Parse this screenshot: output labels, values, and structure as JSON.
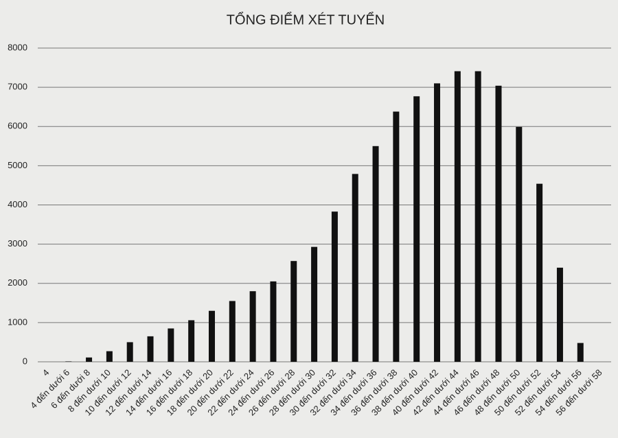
{
  "chart_data": {
    "type": "bar",
    "title": "TỔNG ĐIỂM XÉT TUYỂN",
    "categories": [
      "4",
      "4 đến dưới 6",
      "6 đến dưới 8",
      "8 đến dưới 10",
      "10 đến dưới 12",
      "12 đến dưới 14",
      "14 đến dưới 16",
      "16 đến dưới 18",
      "18 đến dưới 20",
      "20 đến dưới 22",
      "22 đến dưới 24",
      "24 đến dưới 26",
      "26 đến dưới 28",
      "28 đến dưới 30",
      "30 đến dưới 32",
      "32 đến dưới 34",
      "34 đến dưới 36",
      "36 đến dưới 38",
      "38 đến dưới 40",
      "40 đến dưới 42",
      "42 đến dưới 44",
      "44 đến dưới 46",
      "46 đến dưới 48",
      "48 đến dưới 50",
      "50 đến dưới 52",
      "52 đến dưới 54",
      "54 đến dưới 56",
      "56 đến dưới 58"
    ],
    "values": [
      0,
      10,
      110,
      270,
      500,
      650,
      850,
      1060,
      1300,
      1550,
      1800,
      2050,
      2570,
      2930,
      3830,
      4790,
      5500,
      6380,
      6770,
      7100,
      7410,
      7410,
      7040,
      5990,
      4540,
      2400,
      480,
      0
    ],
    "color": "#111111",
    "ylim": [
      0,
      8000
    ],
    "yticks": [
      0,
      1000,
      2000,
      3000,
      4000,
      5000,
      6000,
      7000,
      8000
    ],
    "grid": true
  }
}
